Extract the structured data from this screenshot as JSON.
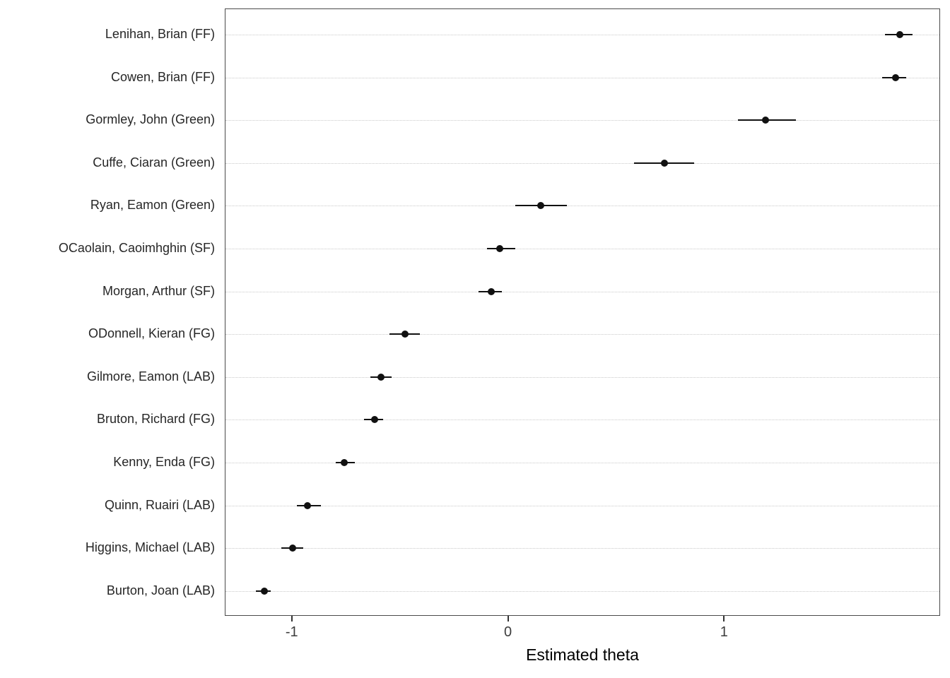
{
  "chart_data": {
    "type": "pointrange",
    "title": "",
    "xlabel": "Estimated theta",
    "ylabel": "",
    "xlim": [
      -1.31,
      2.0
    ],
    "x_tick_labels": [
      "-1",
      "0",
      "1"
    ],
    "x_tick_values": [
      -1,
      0,
      1
    ],
    "grid": "horizontal dotted gridline per category row",
    "legend": "none",
    "colors": {
      "point": "#111111",
      "ci_line": "#111111",
      "gridline": "#c9c9c9",
      "panel_border": "#4a4a4a",
      "background": "#ffffff"
    },
    "series": [
      {
        "label": "Lenihan, Brian (FF)",
        "estimate": 1.81,
        "lower": 1.74,
        "upper": 1.87
      },
      {
        "label": "Cowen, Brian (FF)",
        "estimate": 1.79,
        "lower": 1.73,
        "upper": 1.84
      },
      {
        "label": "Gormley, John (Green)",
        "estimate": 1.19,
        "lower": 1.06,
        "upper": 1.33
      },
      {
        "label": "Cuffe, Ciaran (Green)",
        "estimate": 0.72,
        "lower": 0.58,
        "upper": 0.86
      },
      {
        "label": "Ryan, Eamon (Green)",
        "estimate": 0.15,
        "lower": 0.03,
        "upper": 0.27
      },
      {
        "label": "OCaolain, Caoimhghin (SF)",
        "estimate": -0.04,
        "lower": -0.1,
        "upper": 0.03
      },
      {
        "label": "Morgan, Arthur (SF)",
        "estimate": -0.08,
        "lower": -0.14,
        "upper": -0.03
      },
      {
        "label": "ODonnell, Kieran (FG)",
        "estimate": -0.48,
        "lower": -0.55,
        "upper": -0.41
      },
      {
        "label": "Gilmore, Eamon (LAB)",
        "estimate": -0.59,
        "lower": -0.64,
        "upper": -0.54
      },
      {
        "label": "Bruton, Richard (FG)",
        "estimate": -0.62,
        "lower": -0.67,
        "upper": -0.58
      },
      {
        "label": "Kenny, Enda (FG)",
        "estimate": -0.76,
        "lower": -0.8,
        "upper": -0.71
      },
      {
        "label": "Quinn, Ruairi (LAB)",
        "estimate": -0.93,
        "lower": -0.98,
        "upper": -0.87
      },
      {
        "label": "Higgins, Michael (LAB)",
        "estimate": -1.0,
        "lower": -1.05,
        "upper": -0.95
      },
      {
        "label": "Burton, Joan (LAB)",
        "estimate": -1.13,
        "lower": -1.17,
        "upper": -1.1
      }
    ]
  }
}
